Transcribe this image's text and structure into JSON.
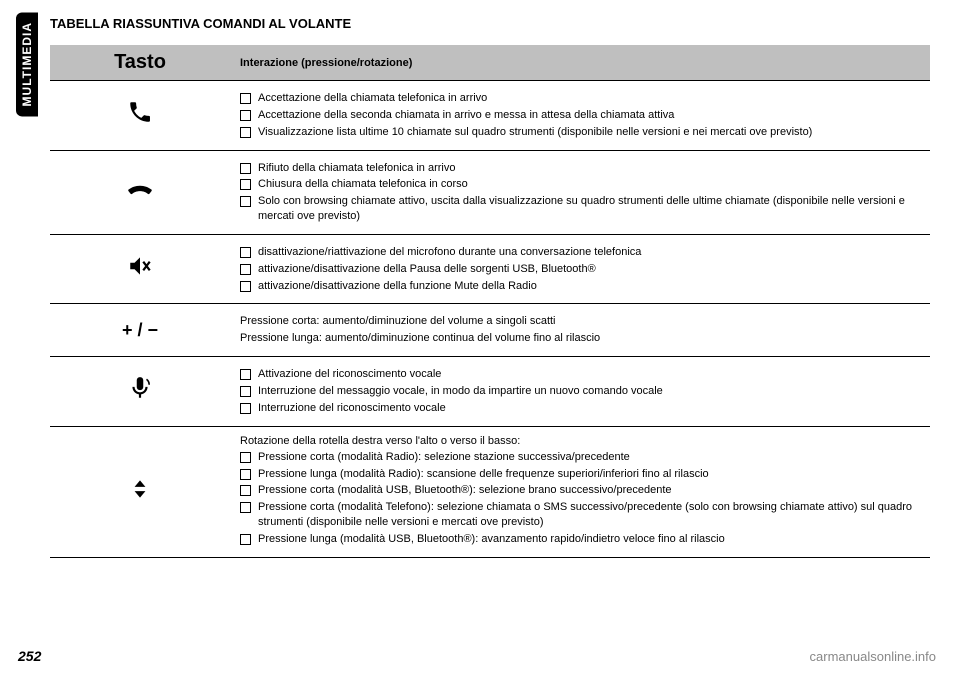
{
  "side_tab": "MULTIMEDIA",
  "heading": "TABELLA RIASSUNTIVA COMANDI AL VOLANTE",
  "table": {
    "header": {
      "col1": "Tasto",
      "col2": "Interazione (pressione/rotazione)"
    },
    "rows": [
      {
        "icon": "phone",
        "items": [
          "Accettazione della chiamata telefonica in arrivo",
          "Accettazione della seconda chiamata in arrivo e messa in attesa della chiamata attiva",
          "Visualizzazione lista ultime 10 chiamate sul quadro strumenti (disponibile nelle versioni e nei mercati ove previsto)"
        ]
      },
      {
        "icon": "hangup",
        "items": [
          "Rifiuto della chiamata telefonica in arrivo",
          "Chiusura della chiamata telefonica in corso",
          "Solo con browsing chiamate attivo, uscita dalla visualizzazione su quadro strumenti delle ultime chiamate (disponibile nelle versioni e mercati ove previsto)"
        ]
      },
      {
        "icon": "mute",
        "items": [
          "disattivazione/riattivazione del microfono durante una conversazione telefonica",
          "attivazione/disattivazione della Pausa delle sorgenti USB, Bluetooth®",
          "attivazione/disattivazione della funzione Mute della Radio"
        ]
      },
      {
        "icon": "volume",
        "plain": [
          "Pressione corta: aumento/diminuzione del volume a singoli scatti",
          "Pressione lunga: aumento/diminuzione continua del volume fino al rilascio"
        ]
      },
      {
        "icon": "voice",
        "items": [
          "Attivazione del riconoscimento vocale",
          "Interruzione del messaggio vocale, in modo da impartire un nuovo comando vocale",
          "Interruzione del riconoscimento vocale"
        ]
      },
      {
        "icon": "updown",
        "lead": "Rotazione della rotella destra verso l'alto o verso il basso:",
        "items": [
          "Pressione corta (modalità Radio): selezione stazione successiva/precedente",
          "Pressione lunga (modalità Radio): scansione delle frequenze superiori/inferiori fino al rilascio",
          "Pressione corta (modalità USB, Bluetooth®): selezione brano successivo/precedente",
          "Pressione corta (modalità Telefono): selezione chiamata o SMS successivo/precedente (solo con browsing chiamate attivo) sul quadro strumenti (disponibile nelle versioni e mercati ove previsto)",
          "Pressione lunga (modalità USB, Bluetooth®): avanzamento rapido/indietro veloce fino al rilascio"
        ]
      }
    ]
  },
  "page_number": "252",
  "footer_url": "carmanualsonline.info"
}
